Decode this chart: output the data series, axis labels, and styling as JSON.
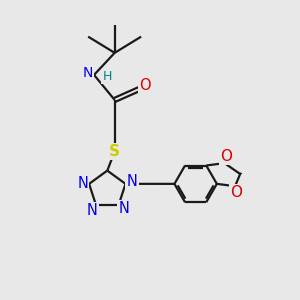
{
  "bg_color": "#e8e8e8",
  "bond_color": "#1a1a1a",
  "N_color": "#0000ee",
  "O_color": "#dd0000",
  "S_color": "#cccc00",
  "H_color": "#008080",
  "lw": 1.6,
  "figsize": [
    3.0,
    3.0
  ],
  "dpi": 100,
  "xlim": [
    0,
    10
  ],
  "ylim": [
    0,
    10
  ]
}
